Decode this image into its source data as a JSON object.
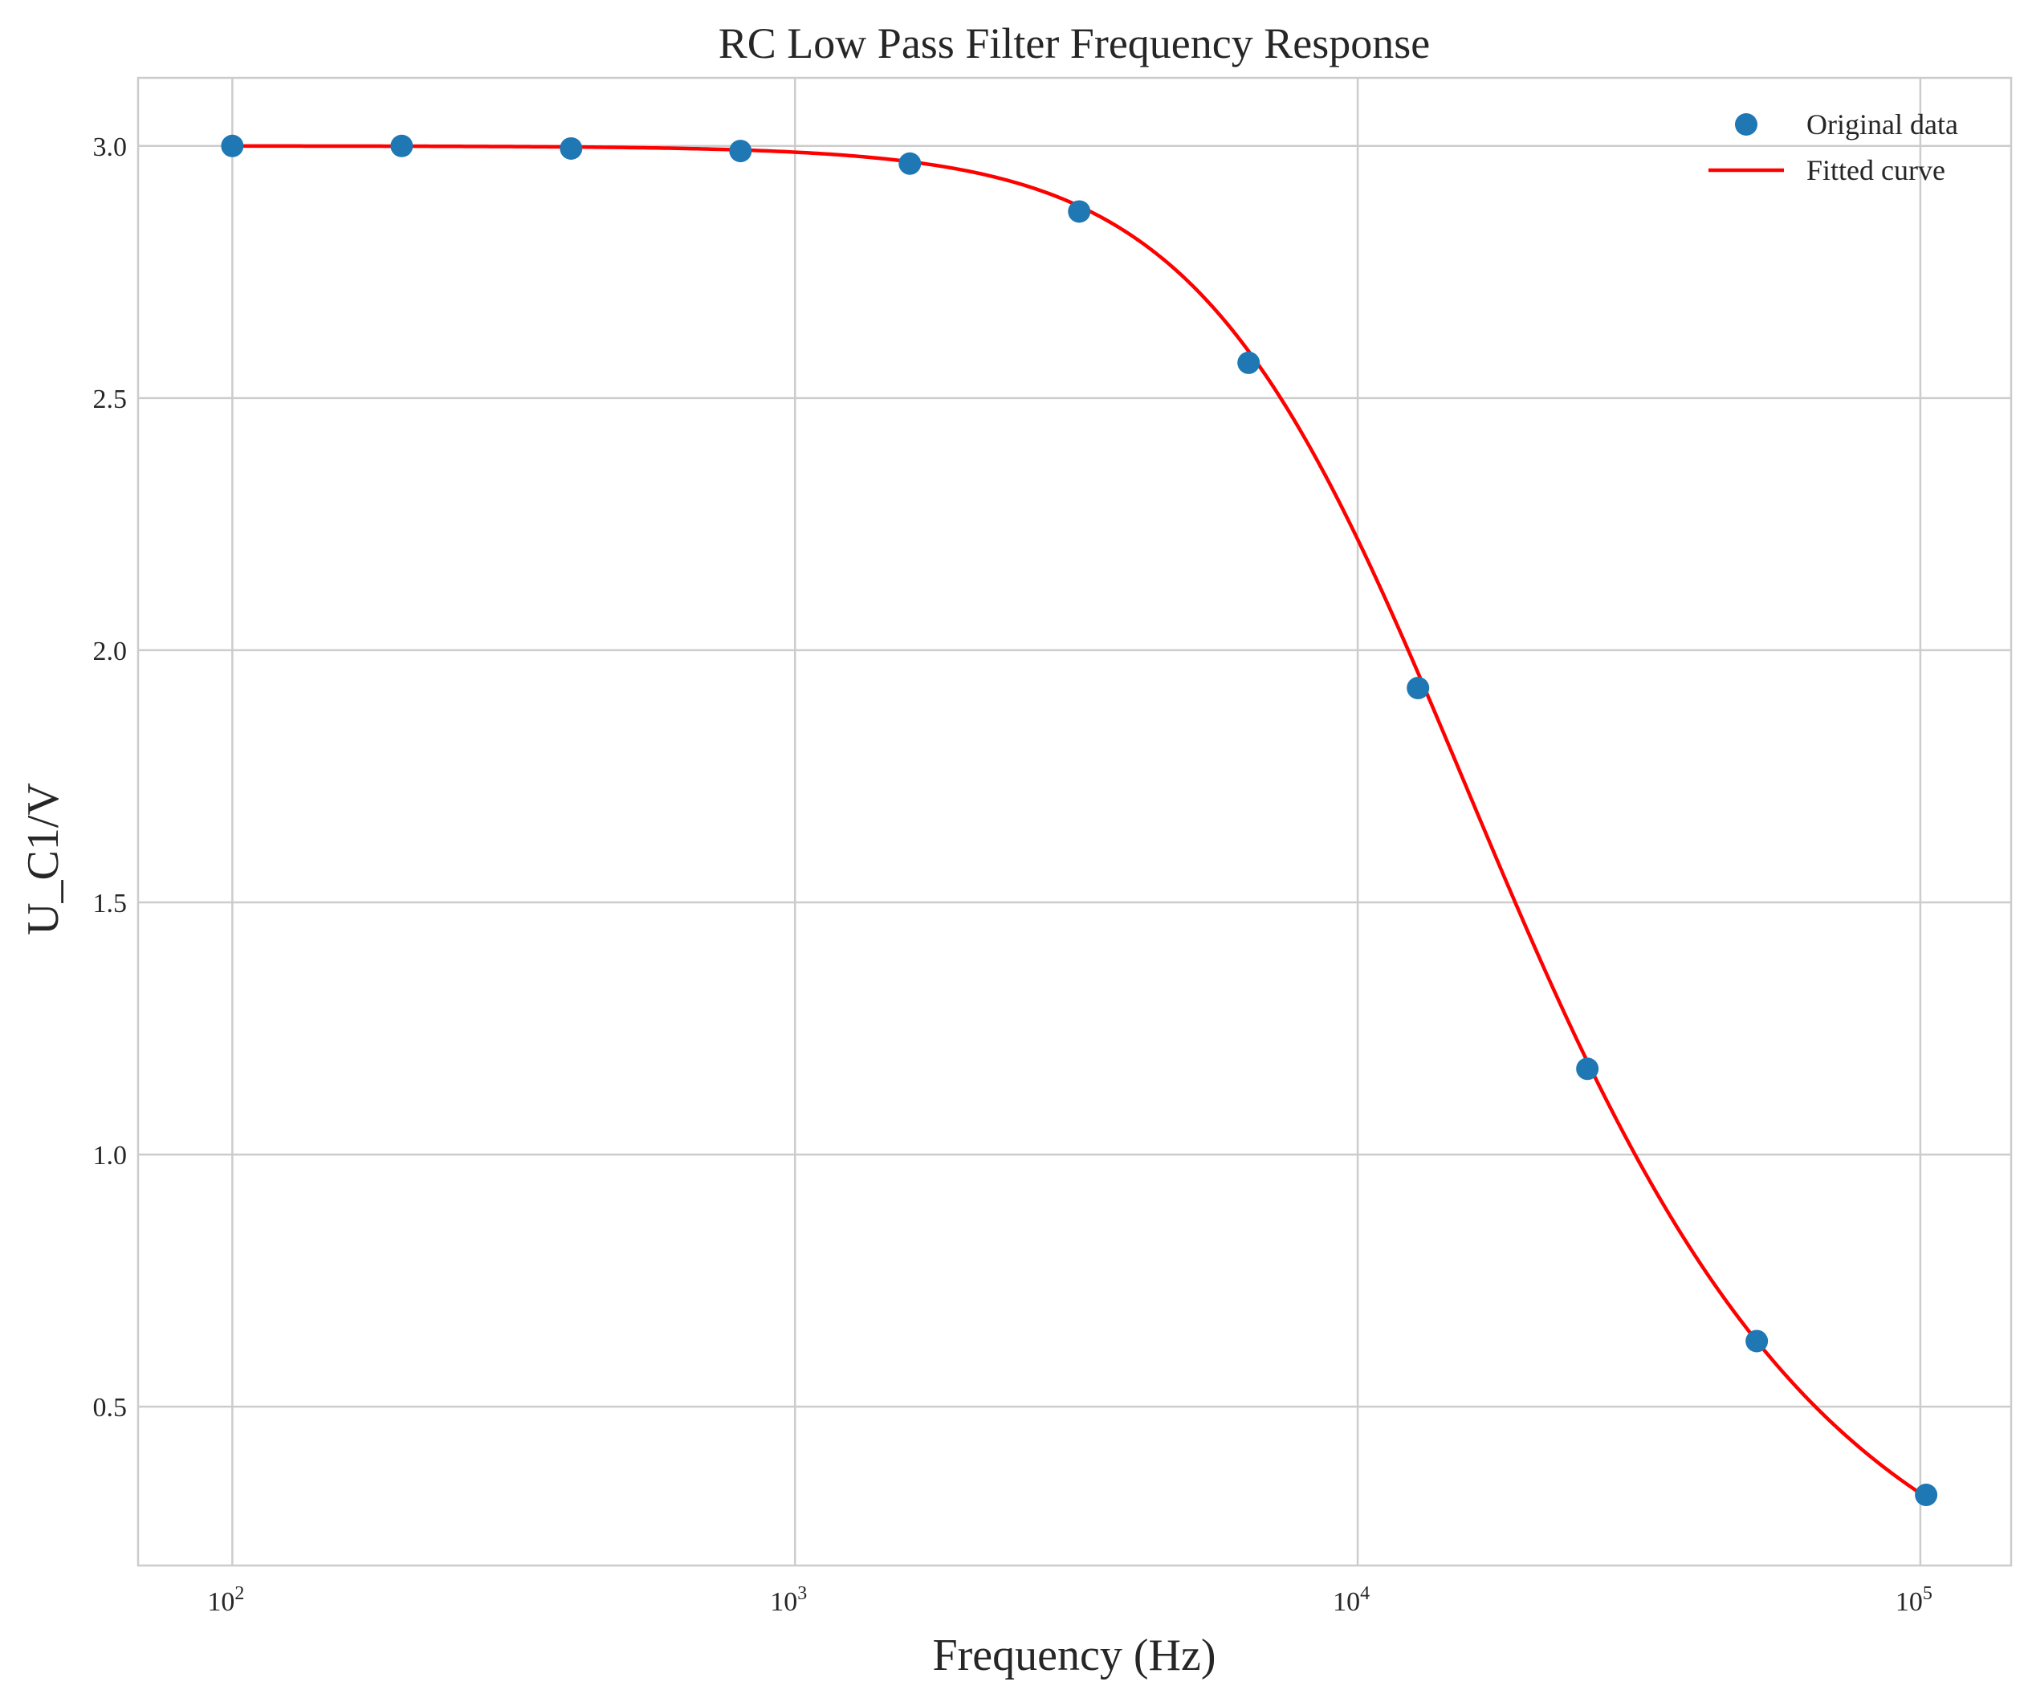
{
  "chart_data": {
    "type": "scatter",
    "title": "RC Low Pass Filter Frequency Response",
    "xlabel": "Frequency (Hz)",
    "ylabel": "U_C1/V",
    "xscale": "log",
    "xlim": [
      68,
      145000
    ],
    "ylim": [
      0.185,
      3.135
    ],
    "grid": true,
    "legend_position": "top-right",
    "x_ticks": [
      {
        "value": 100,
        "base": "10",
        "exp": "2"
      },
      {
        "value": 1000,
        "base": "10",
        "exp": "3"
      },
      {
        "value": 10000,
        "base": "10",
        "exp": "4"
      },
      {
        "value": 100000,
        "base": "10",
        "exp": "5"
      }
    ],
    "y_ticks": [
      {
        "value": 0.5,
        "label": "0.5"
      },
      {
        "value": 1.0,
        "label": "1.0"
      },
      {
        "value": 1.5,
        "label": "1.5"
      },
      {
        "value": 2.0,
        "label": "2.0"
      },
      {
        "value": 2.5,
        "label": "2.5"
      },
      {
        "value": 3.0,
        "label": "3.0"
      }
    ],
    "series": [
      {
        "name": "Original data",
        "kind": "scatter",
        "color": "#1f77b4",
        "points": [
          [
            100,
            3.0
          ],
          [
            200,
            3.0
          ],
          [
            400,
            2.995
          ],
          [
            800,
            2.99
          ],
          [
            1600,
            2.965
          ],
          [
            3200,
            2.87
          ],
          [
            6400,
            2.57
          ],
          [
            12800,
            1.925
          ],
          [
            25600,
            1.17
          ],
          [
            51200,
            0.63
          ],
          [
            102400,
            0.325
          ]
        ]
      },
      {
        "name": "Fitted curve",
        "kind": "line",
        "color": "#ff0000",
        "model": {
          "A": 3.0,
          "fc": 11000
        }
      }
    ]
  }
}
